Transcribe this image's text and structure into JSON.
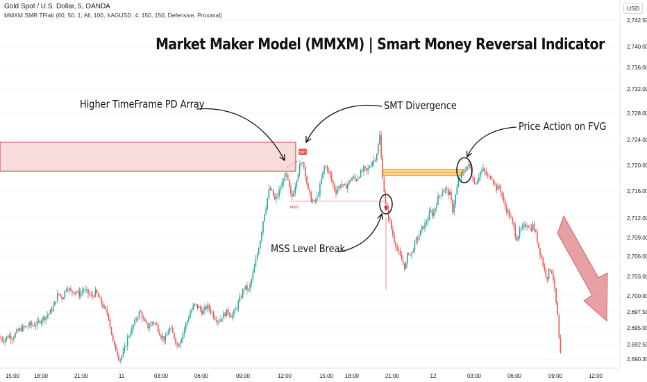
{
  "header": {
    "symbol": "Gold Spot / U.S. Dollar, 5, OANDA",
    "indicator": "MMXM SMR TFlab (60, 50, 1, All, 100, XAGUSD, 4, 150, 150, Defensive, Proximal)",
    "currency": "USD"
  },
  "title": "Market Maker Model (MMXM) | Smart Money Reversal Indicator",
  "annotations": {
    "pd_array": "Higher TimeFrame PD Array",
    "smt": "SMT Divergence",
    "fvg": "Price Action on FVG",
    "mss_break": "MSS Level Break"
  },
  "chart_data": {
    "type": "candlestick",
    "title": "Market Maker Model (MMXM) | Smart Money Reversal Indicator",
    "symbol": "Gold Spot / U.S. Dollar, 5, OANDA",
    "y_ticks": [
      2742.5,
      2740.0,
      2736.0,
      2732.0,
      2728.0,
      2724.0,
      2720.0,
      2716.0,
      2712.0,
      2709.0,
      2706.0,
      2703.0,
      2700.0,
      2697.5,
      2695.0,
      2692.5,
      2690.3
    ],
    "y_tick_labels": [
      "2,742.500",
      "2,740.000",
      "2,736.000",
      "2,732.000",
      "2,728.000",
      "2,724.000",
      "2,720.000",
      "2,716.000",
      "2,712.000",
      "2,709.000",
      "2,706.000",
      "2,703.000",
      "2,700.000",
      "2,697.500",
      "2,695.000",
      "2,692.500",
      "2,690.300"
    ],
    "x_tick_labels": [
      "15:00",
      "18:00",
      "21:00",
      "11",
      "03:00",
      "06:00",
      "09:00",
      "12:00",
      "15:00",
      "18:00",
      "21:00",
      "12",
      "03:00",
      "06:00",
      "09:00",
      "12:00"
    ],
    "bullish_color": "#26a69a",
    "bearish_color": "#ef5350",
    "zones": {
      "pd_array": {
        "top": 2723.6,
        "bottom": 2719.1,
        "color": "#f8dcdc",
        "border": "#c62828"
      },
      "fvg": {
        "top": 2719.4,
        "bottom": 2718.4,
        "color": "#f5a623"
      }
    },
    "levels": {
      "mss": 2714.5
    },
    "mss_label": "MSS",
    "smt_label": "SMT",
    "path": [
      [
        0,
        2693.5
      ],
      [
        6,
        2693.2
      ],
      [
        12,
        2693.8
      ],
      [
        18,
        2693.6
      ],
      [
        24,
        2694.3
      ],
      [
        30,
        2694.9
      ],
      [
        36,
        2695.0
      ],
      [
        42,
        2695.5
      ],
      [
        48,
        2695.4
      ],
      [
        54,
        2695.7
      ],
      [
        60,
        2696.4
      ],
      [
        66,
        2696.8
      ],
      [
        72,
        2697.4
      ],
      [
        78,
        2698.6
      ],
      [
        84,
        2700.4
      ],
      [
        90,
        2699.6
      ],
      [
        96,
        2701.5
      ],
      [
        102,
        2700.6
      ],
      [
        108,
        2700.8
      ],
      [
        114,
        2700.2
      ],
      [
        120,
        2701.0
      ],
      [
        126,
        2700.5
      ],
      [
        132,
        2699.8
      ],
      [
        138,
        2700.6
      ],
      [
        144,
        2699.3
      ],
      [
        150,
        2698.0
      ],
      [
        156,
        2697.0
      ],
      [
        160,
        2694.4
      ],
      [
        164,
        2692.2
      ],
      [
        168,
        2691.6
      ],
      [
        172,
        2690.2
      ],
      [
        178,
        2691.2
      ],
      [
        184,
        2693.6
      ],
      [
        190,
        2694.8
      ],
      [
        196,
        2696.4
      ],
      [
        202,
        2697.6
      ],
      [
        208,
        2695.8
      ],
      [
        214,
        2695.1
      ],
      [
        220,
        2696.0
      ],
      [
        226,
        2695.3
      ],
      [
        232,
        2693.8
      ],
      [
        238,
        2693.2
      ],
      [
        244,
        2695.0
      ],
      [
        250,
        2693.9
      ],
      [
        256,
        2692.2
      ],
      [
        262,
        2693.8
      ],
      [
        268,
        2695.6
      ],
      [
        274,
        2697.4
      ],
      [
        280,
        2698.6
      ],
      [
        286,
        2698.2
      ],
      [
        292,
        2697.4
      ],
      [
        298,
        2698.4
      ],
      [
        304,
        2697.6
      ],
      [
        310,
        2696.5
      ],
      [
        316,
        2696.2
      ],
      [
        322,
        2697.0
      ],
      [
        328,
        2697.6
      ],
      [
        334,
        2696.8
      ],
      [
        340,
        2698.0
      ],
      [
        346,
        2699.6
      ],
      [
        352,
        2701.4
      ],
      [
        358,
        2700.8
      ],
      [
        364,
        2703.2
      ],
      [
        370,
        2706.0
      ],
      [
        376,
        2709.4
      ],
      [
        380,
        2712.4
      ],
      [
        384,
        2714.2
      ],
      [
        388,
        2716.4
      ],
      [
        392,
        2715.8
      ],
      [
        396,
        2714.6
      ],
      [
        400,
        2715.4
      ],
      [
        404,
        2716.4
      ],
      [
        408,
        2717.8
      ],
      [
        412,
        2718.6
      ],
      [
        416,
        2716.8
      ],
      [
        420,
        2714.8
      ],
      [
        424,
        2716.4
      ],
      [
        428,
        2718.4
      ],
      [
        432,
        2719.8
      ],
      [
        436,
        2720.8
      ],
      [
        440,
        2718.6
      ],
      [
        444,
        2716.0
      ],
      [
        448,
        2714.8
      ],
      [
        452,
        2714.2
      ],
      [
        456,
        2714.8
      ],
      [
        460,
        2716.2
      ],
      [
        464,
        2718.4
      ],
      [
        468,
        2720.0
      ],
      [
        472,
        2719.4
      ],
      [
        476,
        2718.2
      ],
      [
        480,
        2716.8
      ],
      [
        484,
        2716.0
      ],
      [
        488,
        2716.6
      ],
      [
        492,
        2717.2
      ],
      [
        496,
        2716.4
      ],
      [
        500,
        2717.0
      ],
      [
        504,
        2717.6
      ],
      [
        508,
        2718.2
      ],
      [
        512,
        2717.6
      ],
      [
        516,
        2718.4
      ],
      [
        520,
        2718.8
      ],
      [
        524,
        2719.4
      ],
      [
        528,
        2719.0
      ],
      [
        532,
        2719.8
      ],
      [
        536,
        2720.6
      ],
      [
        540,
        2721.0
      ],
      [
        544,
        2722.4
      ],
      [
        547,
        2724.6
      ],
      [
        550,
        2719.6
      ],
      [
        553,
        2716.4
      ],
      [
        556,
        2713.4
      ],
      [
        560,
        2712.2
      ],
      [
        564,
        2710.2
      ],
      [
        568,
        2708.6
      ],
      [
        572,
        2707.2
      ],
      [
        576,
        2706.0
      ],
      [
        580,
        2705.2
      ],
      [
        584,
        2704.2
      ],
      [
        588,
        2706.8
      ],
      [
        592,
        2706.0
      ],
      [
        596,
        2707.6
      ],
      [
        600,
        2708.6
      ],
      [
        604,
        2709.4
      ],
      [
        608,
        2710.4
      ],
      [
        612,
        2711.0
      ],
      [
        616,
        2711.8
      ],
      [
        620,
        2713.0
      ],
      [
        624,
        2712.4
      ],
      [
        628,
        2714.2
      ],
      [
        632,
        2715.2
      ],
      [
        636,
        2715.8
      ],
      [
        640,
        2716.4
      ],
      [
        644,
        2716.0
      ],
      [
        648,
        2715.4
      ],
      [
        652,
        2713.2
      ],
      [
        656,
        2715.2
      ],
      [
        660,
        2717.4
      ],
      [
        664,
        2718.4
      ],
      [
        668,
        2719.0
      ],
      [
        672,
        2719.8
      ],
      [
        676,
        2720.0
      ],
      [
        680,
        2718.4
      ],
      [
        684,
        2717.0
      ],
      [
        688,
        2718.0
      ],
      [
        692,
        2719.0
      ],
      [
        696,
        2719.2
      ],
      [
        700,
        2718.6
      ],
      [
        704,
        2718.0
      ],
      [
        708,
        2718.4
      ],
      [
        712,
        2717.2
      ],
      [
        716,
        2716.2
      ],
      [
        720,
        2716.8
      ],
      [
        724,
        2714.8
      ],
      [
        728,
        2713.6
      ],
      [
        732,
        2712.8
      ],
      [
        736,
        2711.8
      ],
      [
        740,
        2710.6
      ],
      [
        744,
        2708.8
      ],
      [
        748,
        2709.8
      ],
      [
        752,
        2710.4
      ],
      [
        756,
        2710.8
      ],
      [
        760,
        2711.2
      ],
      [
        764,
        2710.2
      ],
      [
        768,
        2711.0
      ],
      [
        772,
        2709.4
      ],
      [
        776,
        2707.4
      ],
      [
        780,
        2705.8
      ],
      [
        784,
        2704.0
      ],
      [
        788,
        2702.8
      ],
      [
        792,
        2704.2
      ],
      [
        796,
        2703.6
      ],
      [
        800,
        2699.8
      ],
      [
        803,
        2697.0
      ],
      [
        806,
        2692.0
      ],
      [
        808,
        2690.2
      ]
    ]
  }
}
